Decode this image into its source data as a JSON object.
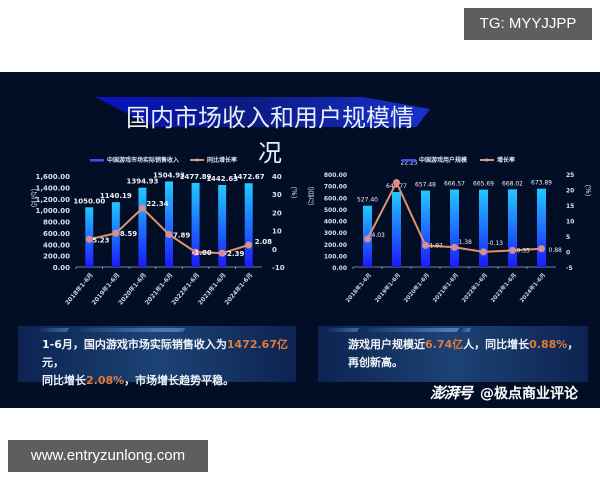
{
  "watermarks": {
    "top": "TG: MYYJJPP",
    "bottom": "www.entryzunlong.com"
  },
  "title": "国内市场收入和用户规模情况",
  "chart_data": [
    {
      "type": "bar",
      "title": "",
      "categories": [
        "2018年1-6月",
        "2019年1-6月",
        "2020年1-6月",
        "2021年1-6月",
        "2022年1-6月",
        "2023年1-6月",
        "2024年1-6月"
      ],
      "series": [
        {
          "name": "中国游戏市场实际销售收入",
          "type": "bar",
          "axis": "left",
          "values": [
            1050.0,
            1140.19,
            1394.93,
            1504.93,
            1477.89,
            1442.63,
            1472.67
          ],
          "labels": [
            "1050.00",
            "1140.19",
            "1394.93",
            "1504.93",
            "1477.89",
            "1442.63",
            "1472.67"
          ]
        },
        {
          "name": "同比增长率",
          "type": "line",
          "axis": "right",
          "values": [
            5.23,
            8.59,
            22.34,
            7.89,
            -1.8,
            -2.39,
            2.08
          ],
          "labels": [
            "5.23",
            "8.59",
            "22.34",
            "7.89",
            "-1.80",
            "-2.39",
            "2.08"
          ]
        }
      ],
      "ylabel": "（亿元）",
      "ylabel_right": "（%）",
      "ylim": [
        0,
        1600
      ],
      "ylim_right": [
        -10,
        40
      ],
      "yticks": [
        "0.00",
        "200.00",
        "400.00",
        "600.00",
        "800.00",
        "1,000.00",
        "1,200.00",
        "1,400.00",
        "1,600.00"
      ],
      "yticks_right": [
        "-10",
        "0",
        "10",
        "20",
        "30",
        "40"
      ],
      "grid": false,
      "legend_position": "top"
    },
    {
      "type": "bar",
      "title": "",
      "categories": [
        "2018年1-6月",
        "2019年1-6月",
        "2020年1-6月",
        "2021年1-6月",
        "2022年1-6月",
        "2023年1-6月",
        "2024年1-6月"
      ],
      "series": [
        {
          "name": "中国游戏用户规模",
          "type": "bar",
          "axis": "left",
          "values": [
            527.4,
            644.77,
            657.48,
            666.57,
            665.69,
            668.02,
            673.89
          ],
          "labels": [
            "527.40",
            "644.77",
            "657.48",
            "666.57",
            "665.69",
            "668.02",
            "673.89"
          ]
        },
        {
          "name": "增长率",
          "type": "line",
          "axis": "right",
          "values": [
            4.03,
            22.25,
            1.97,
            1.38,
            -0.13,
            0.35,
            0.88
          ],
          "labels": [
            "4.03",
            "22.25",
            "1.97",
            "1.38",
            "-0.13",
            "0.35",
            "0.88"
          ]
        }
      ],
      "ylabel": "（百万）",
      "ylabel_right": "（%）",
      "ylim": [
        0,
        800
      ],
      "ylim_right": [
        -5,
        25
      ],
      "yticks": [
        "0.00",
        "100.00",
        "200.00",
        "300.00",
        "400.00",
        "500.00",
        "600.00",
        "700.00",
        "800.00"
      ],
      "yticks_right": [
        "-5",
        "0",
        "5",
        "10",
        "15",
        "20",
        "25"
      ],
      "grid": false,
      "legend_position": "top"
    }
  ],
  "summaries": {
    "left": {
      "p1": "1-6月，国内游戏市场实际销售收入为",
      "h1": "1472.67亿",
      "p2": "元，",
      "p3": "同比增长",
      "h2": "2.08%",
      "p4": "，市场增长趋势平稳。"
    },
    "right": {
      "p1": "游戏用户规模近",
      "h1": "6.74亿",
      "p2": "人，同比增长",
      "h2": "0.88%",
      "p3": "，",
      "p4": "再创新高。"
    }
  },
  "footer": {
    "brand": "澎湃号",
    "author": "@极点商业评论"
  },
  "colors": {
    "background": "#020d26",
    "bar_top": "#22c8ff",
    "bar_bottom": "#1a1aff",
    "line": "#e0916a",
    "highlight": "#e07a3c",
    "text": "#e8eef8"
  }
}
